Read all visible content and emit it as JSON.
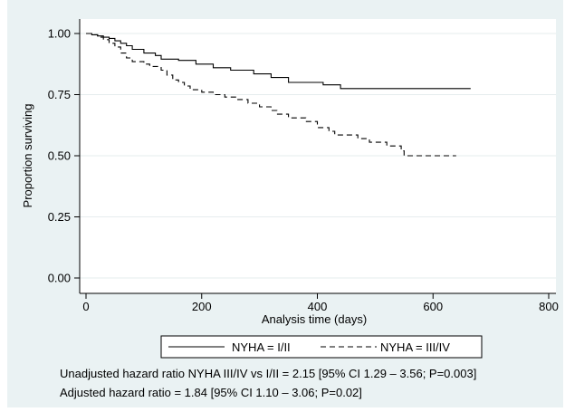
{
  "chart_data": {
    "type": "line",
    "step": true,
    "xlabel": "Analysis time (days)",
    "ylabel": "Proportion surviving",
    "xlim": [
      0,
      800
    ],
    "ylim": [
      0,
      1
    ],
    "x_ticks": [
      0,
      200,
      400,
      600,
      800
    ],
    "y_ticks": [
      0.0,
      0.25,
      0.5,
      0.75,
      1.0
    ],
    "x_tick_labels": [
      "0",
      "200",
      "400",
      "600",
      "800"
    ],
    "y_tick_labels": [
      "0.00",
      "0.25",
      "0.50",
      "0.75",
      "1.00"
    ],
    "grid": "horizontal",
    "legend_position": "bottom",
    "series": [
      {
        "name": "NYHA = I/II",
        "style": "solid",
        "points": [
          [
            0,
            1.0
          ],
          [
            10,
            0.995
          ],
          [
            20,
            0.99
          ],
          [
            30,
            0.985
          ],
          [
            40,
            0.98
          ],
          [
            50,
            0.97
          ],
          [
            60,
            0.96
          ],
          [
            70,
            0.95
          ],
          [
            80,
            0.935
          ],
          [
            100,
            0.92
          ],
          [
            120,
            0.91
          ],
          [
            130,
            0.895
          ],
          [
            160,
            0.89
          ],
          [
            190,
            0.875
          ],
          [
            220,
            0.86
          ],
          [
            250,
            0.85
          ],
          [
            290,
            0.835
          ],
          [
            320,
            0.82
          ],
          [
            350,
            0.8
          ],
          [
            410,
            0.79
          ],
          [
            440,
            0.775
          ],
          [
            665,
            0.775
          ]
        ]
      },
      {
        "name": "NYHA = III/IV",
        "style": "dashed",
        "points": [
          [
            0,
            1.0
          ],
          [
            10,
            0.995
          ],
          [
            20,
            0.985
          ],
          [
            30,
            0.975
          ],
          [
            40,
            0.96
          ],
          [
            50,
            0.945
          ],
          [
            60,
            0.92
          ],
          [
            70,
            0.9
          ],
          [
            80,
            0.885
          ],
          [
            100,
            0.875
          ],
          [
            110,
            0.865
          ],
          [
            130,
            0.85
          ],
          [
            140,
            0.83
          ],
          [
            150,
            0.81
          ],
          [
            160,
            0.8
          ],
          [
            170,
            0.785
          ],
          [
            180,
            0.77
          ],
          [
            200,
            0.76
          ],
          [
            220,
            0.75
          ],
          [
            240,
            0.74
          ],
          [
            260,
            0.73
          ],
          [
            280,
            0.715
          ],
          [
            300,
            0.7
          ],
          [
            320,
            0.685
          ],
          [
            330,
            0.67
          ],
          [
            350,
            0.655
          ],
          [
            380,
            0.64
          ],
          [
            400,
            0.615
          ],
          [
            420,
            0.6
          ],
          [
            430,
            0.585
          ],
          [
            470,
            0.57
          ],
          [
            490,
            0.555
          ],
          [
            520,
            0.54
          ],
          [
            545,
            0.52
          ],
          [
            550,
            0.5
          ],
          [
            640,
            0.5
          ]
        ]
      }
    ]
  },
  "annotations": {
    "line1": "Unadjusted hazard ratio NYHA III/IV vs I/II = 2.15 [95% CI 1.29 – 3.56; P=0.003]",
    "line2": "Adjusted hazard ratio = 1.84 [95% CI 1.10 – 3.06; P=0.02]"
  },
  "colors": {
    "figure_background": "#eaf2f3",
    "plot_background": "#ffffff",
    "grid": "#e6ecee",
    "line": "#000000"
  }
}
